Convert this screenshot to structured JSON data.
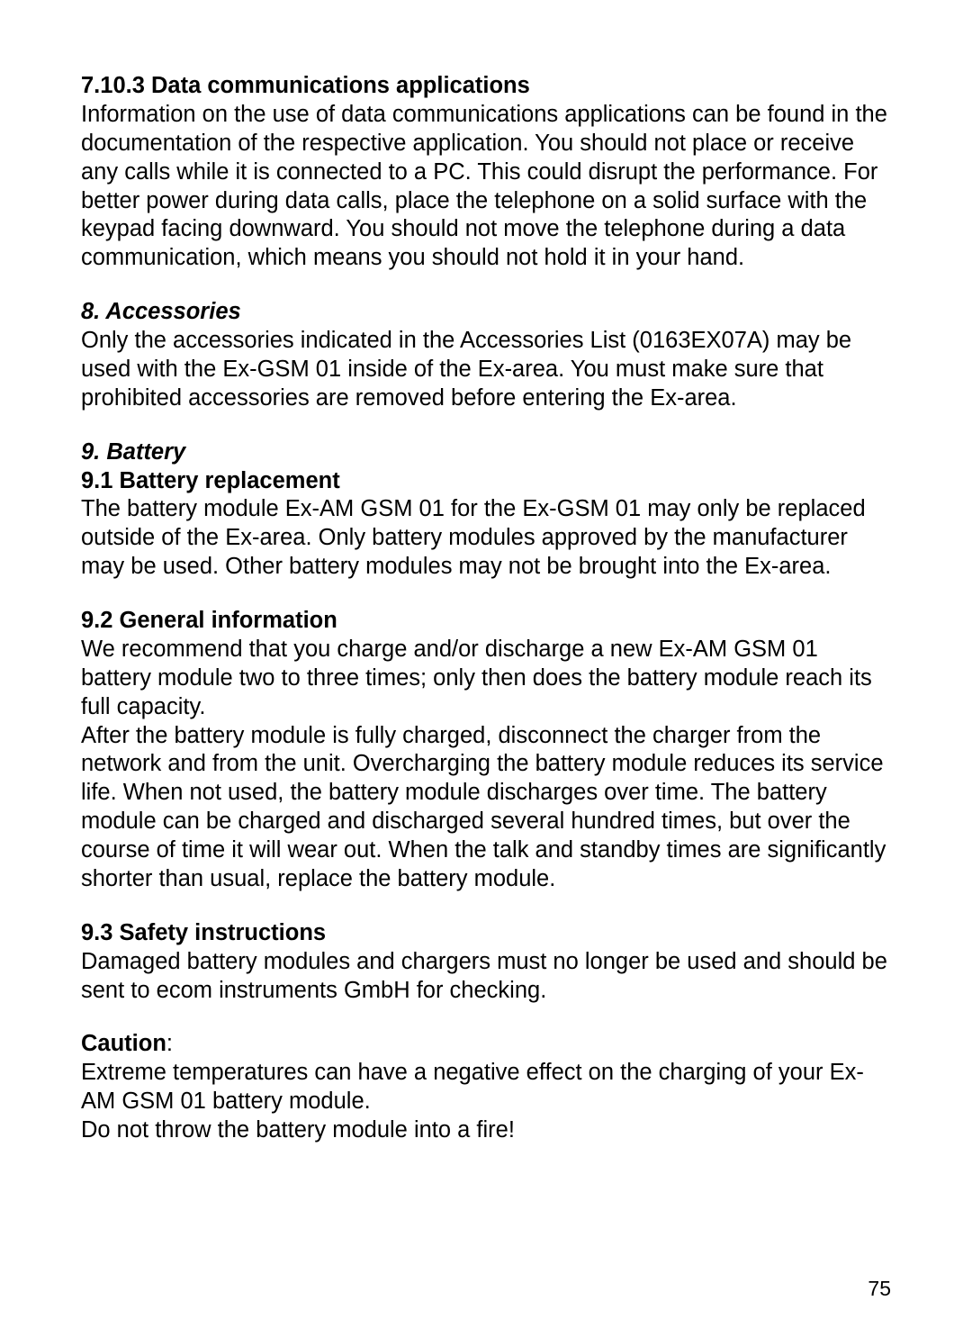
{
  "page": {
    "background_color": "#ffffff",
    "text_color": "#000000",
    "font_family": "Arial, Helvetica, sans-serif",
    "body_fontsize": 25.5,
    "page_number": "75"
  },
  "sections": {
    "s7_10_3": {
      "heading": "7.10.3 Data communications applications",
      "body": "Information on the use of data communications applications can be found in the documentation of the respective application. You should not place or receive any calls while it is connected to a PC. This could disrupt the performance. For better power during data calls, place the telephone on a solid surface with the keypad facing downward.  You should not move the telephone during a data communication, which means you should not hold it in your hand."
    },
    "s8": {
      "heading": "8. Accessories",
      "body": "Only the accessories indicated in the Accessories List (0163EX07A) may be used with the Ex-GSM 01 inside of the Ex-area.  You must make sure that prohibited accessories are removed before entering the Ex-area."
    },
    "s9": {
      "heading": "9. Battery"
    },
    "s9_1": {
      "heading": "9.1 Battery replacement",
      "body": "The battery module Ex-AM GSM 01 for the Ex-GSM 01 may only be replaced outside of the Ex-area.  Only battery modules approved by the manufacturer may be used. Other battery modules may not be brought into the Ex-area."
    },
    "s9_2": {
      "heading": "9.2 General information",
      "body1": "We recommend that you charge and/or discharge a new Ex-AM GSM 01 battery module two to three times; only then does the battery module reach its full capacity.",
      "body2": "After the battery module is fully charged, disconnect the charger from the network and from the unit. Overcharging the battery module reduces its service life. When not used, the battery module discharges over time. The battery module can be charged and discharged several hundred times, but over the course of time it will wear out. When the talk and standby times are significantly shorter than usual, replace the battery module."
    },
    "s9_3": {
      "heading": "9.3 Safety instructions",
      "body": "Damaged battery modules and chargers must no longer be used and should be sent to ecom instruments GmbH for checking."
    },
    "caution": {
      "label": "Caution",
      "colon": ":",
      "body1": "Extreme temperatures can have a negative effect on the charging of your Ex-AM GSM 01 battery module.",
      "body2": "Do not throw the battery module into a fire!"
    }
  }
}
